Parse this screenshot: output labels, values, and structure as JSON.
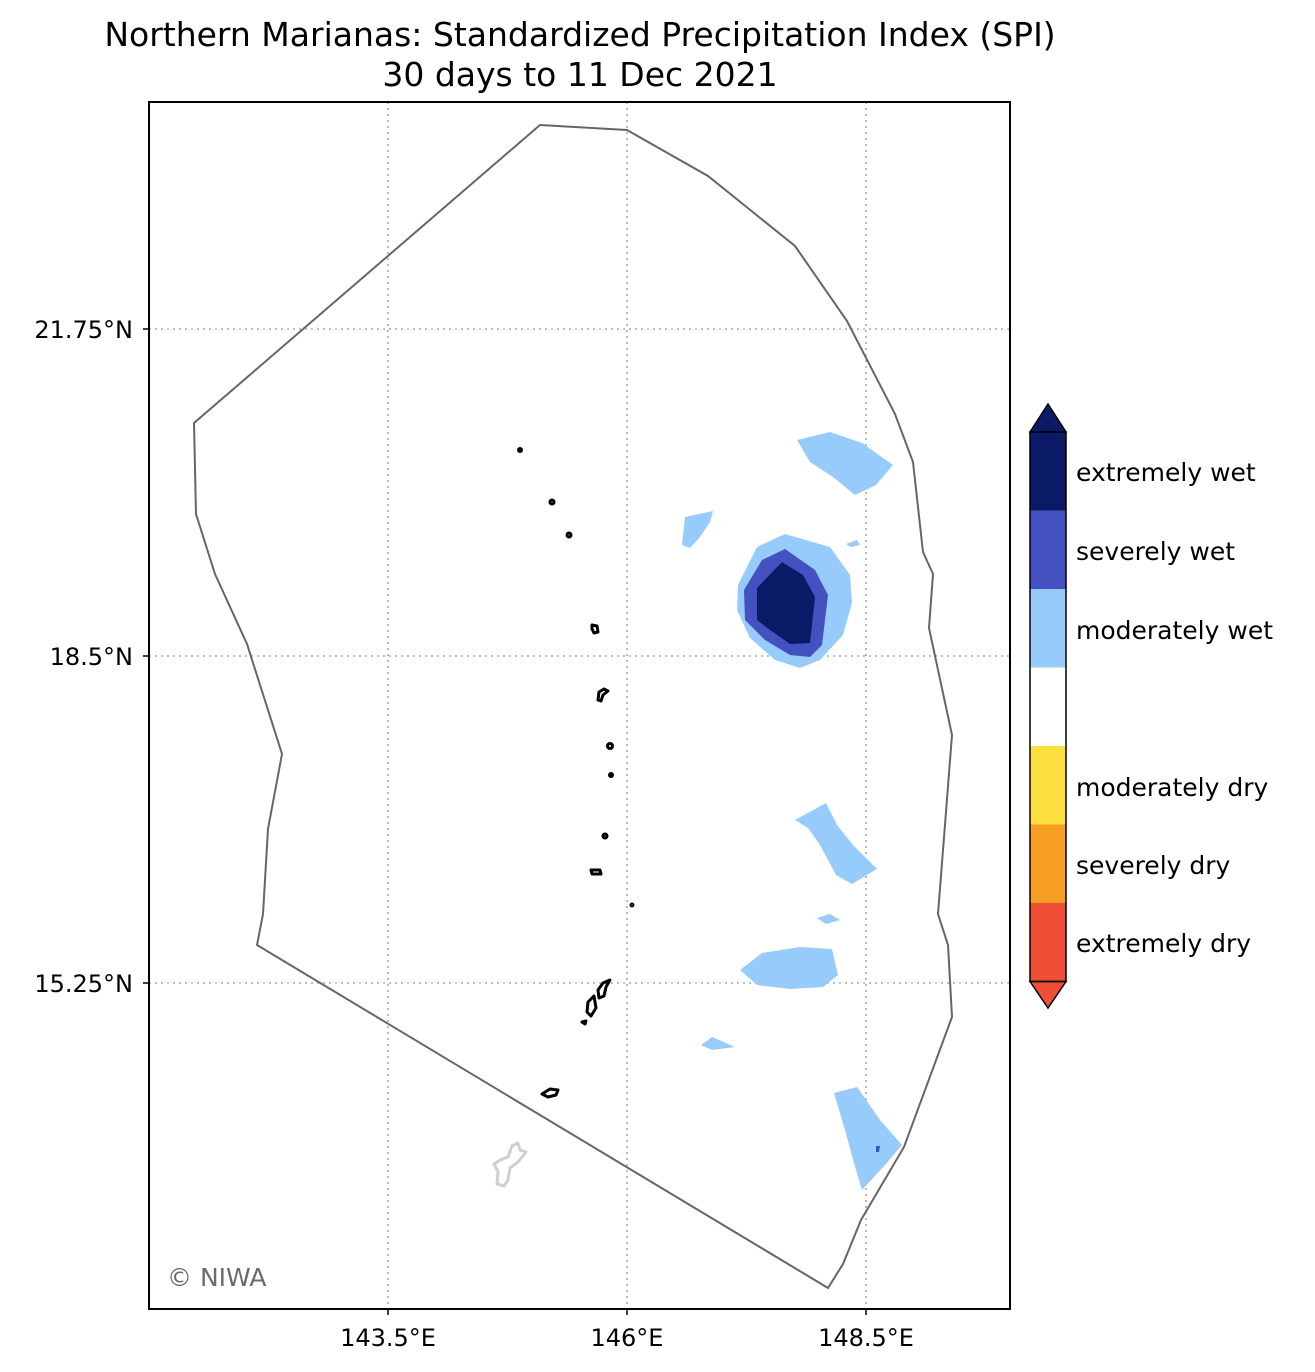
{
  "title_line1": "Northern Marianas: Standardized Precipitation Index (SPI)",
  "title_line2": "30 days to 11 Dec 2021",
  "lat_ticks": [
    "21.75°N",
    "18.5°N",
    "15.25°N"
  ],
  "lon_ticks": [
    "143.5°E",
    "146°E",
    "148.5°E"
  ],
  "credit": "© NIWA",
  "legend": [
    {
      "label": "extremely wet",
      "color": "#0b1a66"
    },
    {
      "label": "severely wet",
      "color": "#4352c0"
    },
    {
      "label": "moderately wet",
      "color": "#97cbfb"
    },
    {
      "label": "",
      "color": "#ffffff"
    },
    {
      "label": "moderately dry",
      "color": "#fddf3d"
    },
    {
      "label": "severely dry",
      "color": "#f69e21"
    },
    {
      "label": "extremely dry",
      "color": "#ee4f36"
    }
  ],
  "colors": {
    "extremely_wet": "#0b1a66",
    "severely_wet": "#4352c0",
    "moderately_wet": "#97cbfb",
    "moderately_dry": "#fddf3d",
    "severely_dry": "#f69e21",
    "extremely_dry": "#ee4f36",
    "eez_boundary": "#666666",
    "guam_outline": "#cfcfcf"
  }
}
